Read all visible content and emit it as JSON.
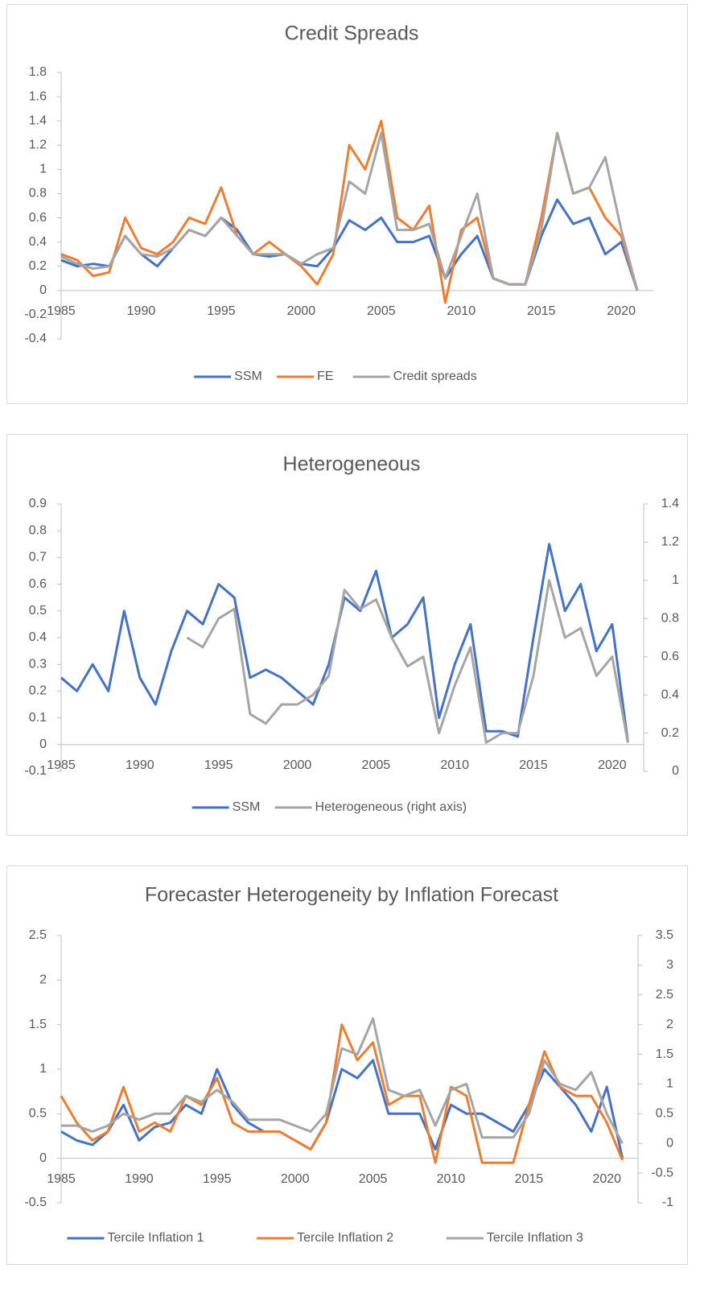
{
  "chart_data": [
    {
      "type": "line",
      "title": "Credit Spreads",
      "legend": "bottom",
      "grid": false,
      "x": [
        1985,
        1986,
        1987,
        1988,
        1989,
        1990,
        1991,
        1992,
        1993,
        1994,
        1995,
        1996,
        1997,
        1998,
        1999,
        2000,
        2001,
        2002,
        2003,
        2004,
        2005,
        2006,
        2007,
        2008,
        2009,
        2010,
        2011,
        2012,
        2013,
        2014,
        2015,
        2016,
        2017,
        2018,
        2019,
        2020,
        2021
      ],
      "xlim": [
        1985,
        2022
      ],
      "xticks": [
        1985,
        1990,
        1995,
        2000,
        2005,
        2010,
        2015,
        2020
      ],
      "ylim": [
        -0.4,
        1.8
      ],
      "yticks": [
        -0.4,
        -0.2,
        0,
        0.2,
        0.4,
        0.6,
        0.8,
        1,
        1.2,
        1.4,
        1.6,
        1.8
      ],
      "series": [
        {
          "name": "SSM",
          "color": "#4472c4",
          "values": [
            0.25,
            0.2,
            0.22,
            0.2,
            0.45,
            0.3,
            0.2,
            0.35,
            0.5,
            0.45,
            0.6,
            0.5,
            0.3,
            0.28,
            0.3,
            0.22,
            0.2,
            0.35,
            0.58,
            0.5,
            0.6,
            0.4,
            0.4,
            0.45,
            0.1,
            0.3,
            0.45,
            0.1,
            0.05,
            0.05,
            0.45,
            0.75,
            0.55,
            0.6,
            0.3,
            0.4,
            0
          ]
        },
        {
          "name": "FE",
          "color": "#ed7d31",
          "values": [
            0.3,
            0.25,
            0.12,
            0.15,
            0.6,
            0.35,
            0.3,
            0.4,
            0.6,
            0.55,
            0.85,
            0.45,
            0.3,
            0.4,
            0.3,
            0.2,
            0.05,
            0.3,
            1.2,
            1.0,
            1.4,
            0.6,
            0.5,
            0.7,
            -0.1,
            0.5,
            0.6,
            0.1,
            0.05,
            0.05,
            0.6,
            1.3,
            0.8,
            0.85,
            0.6,
            0.45,
            0
          ]
        },
        {
          "name": "Credit spreads",
          "color": "#a5a5a5",
          "values": [
            0.28,
            0.22,
            0.18,
            0.2,
            0.45,
            0.3,
            0.28,
            0.35,
            0.5,
            0.45,
            0.6,
            0.45,
            0.3,
            0.3,
            0.3,
            0.22,
            0.3,
            0.35,
            0.9,
            0.8,
            1.3,
            0.5,
            0.5,
            0.55,
            0.1,
            0.45,
            0.8,
            0.1,
            0.05,
            0.05,
            0.5,
            1.3,
            0.8,
            0.85,
            1.1,
            0.5,
            0
          ]
        }
      ]
    },
    {
      "type": "line",
      "title": "Heterogeneous",
      "legend": "bottom",
      "grid": false,
      "x": [
        1985,
        1986,
        1987,
        1988,
        1989,
        1990,
        1991,
        1992,
        1993,
        1994,
        1995,
        1996,
        1997,
        1998,
        1999,
        2000,
        2001,
        2002,
        2003,
        2004,
        2005,
        2006,
        2007,
        2008,
        2009,
        2010,
        2011,
        2012,
        2013,
        2014,
        2015,
        2016,
        2017,
        2018,
        2019,
        2020,
        2021
      ],
      "xlim": [
        1985,
        2022
      ],
      "xticks": [
        1985,
        1990,
        1995,
        2000,
        2005,
        2010,
        2015,
        2020
      ],
      "ylim": [
        -0.1,
        0.9
      ],
      "yticks": [
        -0.1,
        0,
        0.1,
        0.2,
        0.3,
        0.4,
        0.5,
        0.6,
        0.7,
        0.8,
        0.9
      ],
      "y2lim": [
        0,
        1.4
      ],
      "y2ticks": [
        0,
        0.2,
        0.4,
        0.6,
        0.8,
        1,
        1.2,
        1.4
      ],
      "series": [
        {
          "name": "SSM",
          "color": "#4472c4",
          "values": [
            0.25,
            0.2,
            0.3,
            0.2,
            0.5,
            0.25,
            0.15,
            0.35,
            0.5,
            0.45,
            0.6,
            0.55,
            0.25,
            0.28,
            0.25,
            0.2,
            0.15,
            0.3,
            0.55,
            0.5,
            0.65,
            0.4,
            0.45,
            0.55,
            0.1,
            0.3,
            0.45,
            0.05,
            0.05,
            0.03,
            0.4,
            0.75,
            0.5,
            0.6,
            0.35,
            0.45,
            0.01
          ]
        },
        {
          "name": "Heterogeneous (right axis)",
          "color": "#a5a5a5",
          "axis": "y2",
          "values": [
            null,
            null,
            null,
            null,
            null,
            null,
            null,
            null,
            0.7,
            0.65,
            0.8,
            0.85,
            0.3,
            0.25,
            0.35,
            0.35,
            0.4,
            0.5,
            0.95,
            0.85,
            0.9,
            0.7,
            0.55,
            0.6,
            0.2,
            0.45,
            0.65,
            0.15,
            0.2,
            0.2,
            0.5,
            1.0,
            0.7,
            0.75,
            0.5,
            0.6,
            0.15
          ]
        }
      ]
    },
    {
      "type": "line",
      "title": "Forecaster Heterogeneity by Inflation Forecast",
      "legend": "bottom",
      "grid": false,
      "x": [
        1985,
        1986,
        1987,
        1988,
        1989,
        1990,
        1991,
        1992,
        1993,
        1994,
        1995,
        1996,
        1997,
        1998,
        1999,
        2000,
        2001,
        2002,
        2003,
        2004,
        2005,
        2006,
        2007,
        2008,
        2009,
        2010,
        2011,
        2012,
        2013,
        2014,
        2015,
        2016,
        2017,
        2018,
        2019,
        2020,
        2021
      ],
      "xlim": [
        1985,
        2022
      ],
      "xticks": [
        1985,
        1990,
        1995,
        2000,
        2005,
        2010,
        2015,
        2020
      ],
      "ylim": [
        -0.5,
        2.5
      ],
      "yticks": [
        -0.5,
        0,
        0.5,
        1,
        1.5,
        2,
        2.5
      ],
      "y2lim": [
        -1,
        3.5
      ],
      "y2ticks": [
        -1,
        -0.5,
        0,
        0.5,
        1,
        1.5,
        2,
        2.5,
        3,
        3.5
      ],
      "series": [
        {
          "name": "Tercile Inflation 1",
          "color": "#4472c4",
          "values": [
            0.3,
            0.2,
            0.15,
            0.3,
            0.6,
            0.2,
            0.35,
            0.4,
            0.6,
            0.5,
            1.0,
            0.6,
            0.4,
            0.3,
            0.3,
            0.2,
            0.1,
            0.4,
            1.0,
            0.9,
            1.1,
            0.5,
            0.5,
            0.5,
            0.1,
            0.6,
            0.5,
            0.5,
            0.4,
            0.3,
            0.6,
            1.0,
            0.8,
            0.6,
            0.3,
            0.8,
            0
          ]
        },
        {
          "name": "Tercile Inflation 2",
          "color": "#ed7d31",
          "values": [
            0.7,
            0.4,
            0.2,
            0.3,
            0.8,
            0.3,
            0.4,
            0.3,
            0.7,
            0.6,
            0.9,
            0.4,
            0.3,
            0.3,
            0.3,
            0.2,
            0.1,
            0.4,
            1.5,
            1.1,
            1.3,
            0.6,
            0.7,
            0.7,
            -0.05,
            0.8,
            0.7,
            -0.05,
            -0.05,
            -0.05,
            0.6,
            1.2,
            0.8,
            0.7,
            0.7,
            0.4,
            -0.02
          ]
        },
        {
          "name": "Tercile Inflation 3",
          "color": "#a5a5a5",
          "axis": "y2",
          "values": [
            0.3,
            0.3,
            0.2,
            0.3,
            0.5,
            0.4,
            0.5,
            0.5,
            0.8,
            0.7,
            0.9,
            0.7,
            0.4,
            0.4,
            0.4,
            0.3,
            0.2,
            0.5,
            1.6,
            1.5,
            2.1,
            0.9,
            0.8,
            0.9,
            0.3,
            0.9,
            1.0,
            0.1,
            0.1,
            0.1,
            0.5,
            1.4,
            1.0,
            0.9,
            1.2,
            0.5,
            0
          ]
        }
      ]
    }
  ]
}
